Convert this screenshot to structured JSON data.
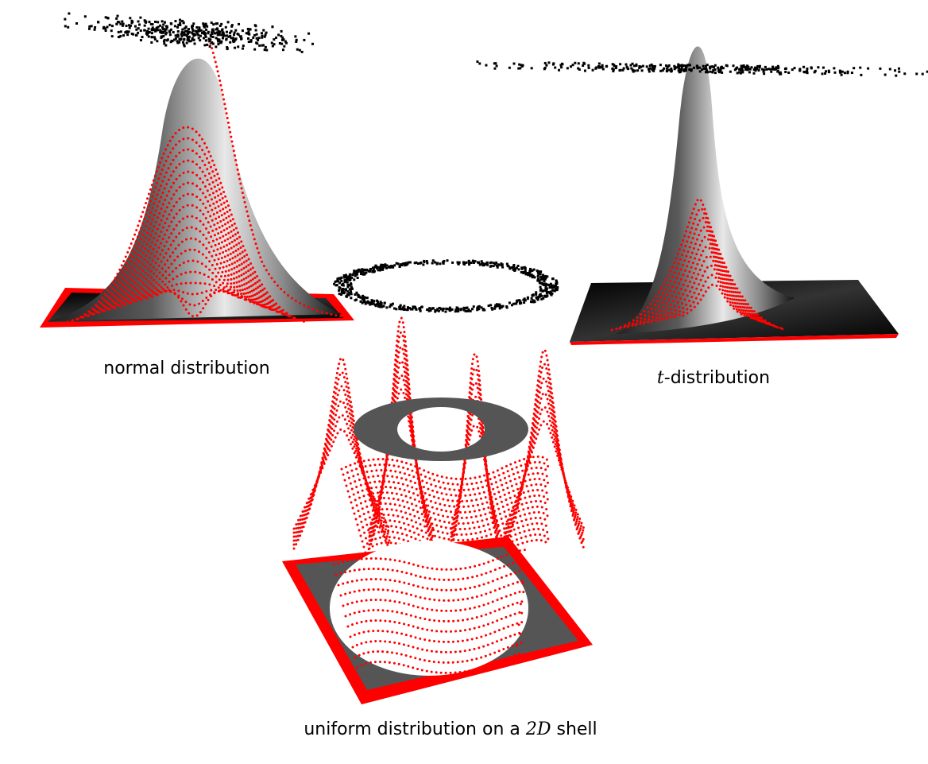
{
  "captions": {
    "normal": "normal distribution",
    "t": {
      "math": "t",
      "text": "-distribution"
    },
    "shell": {
      "before": "uniform distribution on a ",
      "math": "2D",
      "after": " shell"
    }
  }
}
